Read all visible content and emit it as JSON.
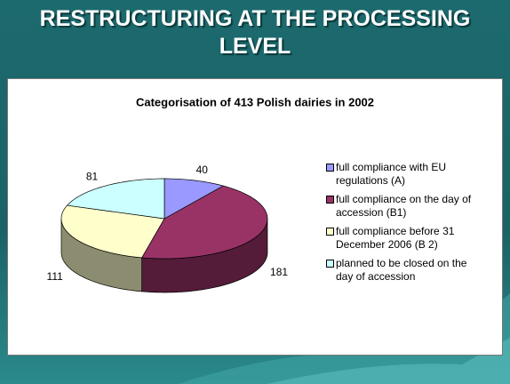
{
  "slide_title": "RESTRUCTURING AT THE PROCESSING LEVEL",
  "chart_data": {
    "type": "pie",
    "title": "Categorisation of 413 Polish dairies in 2002",
    "categories": [
      "full compliance with EU regulations (A)",
      "full compliance on the day of accession (B1)",
      "full compliance before 31 December 2006 (B 2)",
      "planned to be closed on the day of accession"
    ],
    "values": [
      40,
      181,
      111,
      81
    ],
    "colors": [
      "#9999ff",
      "#993366",
      "#ffffcc",
      "#ccffff"
    ],
    "legend": "right"
  }
}
